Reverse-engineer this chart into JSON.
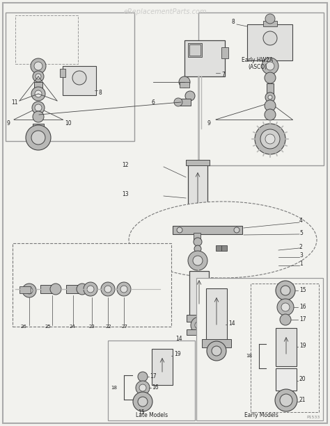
{
  "bg_color": "#f2f2ee",
  "border_color": "#999999",
  "line_color": "#444444",
  "text_color": "#222222",
  "gray_light": "#e0e0de",
  "gray_mid": "#b8b8b6",
  "gray_dark": "#888886",
  "watermark_text": "eReplacementParts.com",
  "watermark_color": "#ccccca",
  "late_models_label": "Late Models",
  "early_models_label": "Early Models",
  "early_hw2a_label": "Early HW2A\n(ASCO)",
  "p_code": "P1533"
}
